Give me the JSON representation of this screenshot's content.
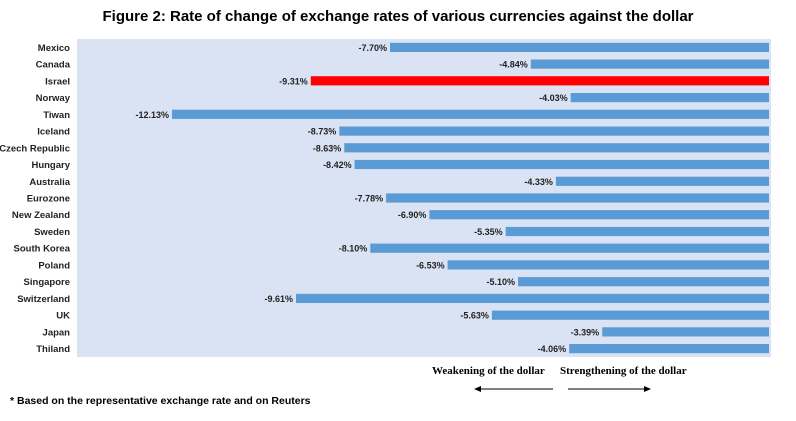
{
  "chart_data": {
    "type": "bar",
    "orientation": "horizontal",
    "title": "Figure 2: Rate of change of exchange rates of various currencies against the dollar",
    "categories": [
      "Mexico",
      "Canada",
      "Israel",
      "Norway",
      "Tiwan",
      "Iceland",
      "Czech Republic",
      "Hungary",
      "Australia",
      "Eurozone",
      "New Zealand",
      "Sweden",
      "South Korea",
      "Poland",
      "Singapore",
      "Switzerland",
      "UK",
      "Japan",
      "Thiland"
    ],
    "values": [
      -7.7,
      -4.84,
      -9.31,
      -4.03,
      -12.13,
      -8.73,
      -8.63,
      -8.42,
      -4.33,
      -7.78,
      -6.9,
      -5.35,
      -8.1,
      -6.53,
      -5.1,
      -9.61,
      -5.63,
      -3.39,
      -4.06
    ],
    "value_labels": [
      "-7.70%",
      "-4.84%",
      "-9.31%",
      "-4.03%",
      "-12.13%",
      "-8.73%",
      "-8.63%",
      "-8.42%",
      "-4.33%",
      "-7.78%",
      "-6.90%",
      "-5.35%",
      "-8.10%",
      "-6.53%",
      "-5.10%",
      "-9.61%",
      "-5.63%",
      "-3.39%",
      "-4.06%"
    ],
    "highlight": "Israel",
    "xlim": [
      -13.5,
      0
    ],
    "grid": false,
    "legend": false
  },
  "colors": {
    "bar": "#5b9bd5",
    "highlight_bar": "#ff0000",
    "plot_background": "#dae3f3"
  },
  "annotations": {
    "weakening": "Weakening of  the dollar",
    "strengthening": "Strengthening of the dollar"
  },
  "footnote": "* Based on the representative exchange rate and on Reuters"
}
